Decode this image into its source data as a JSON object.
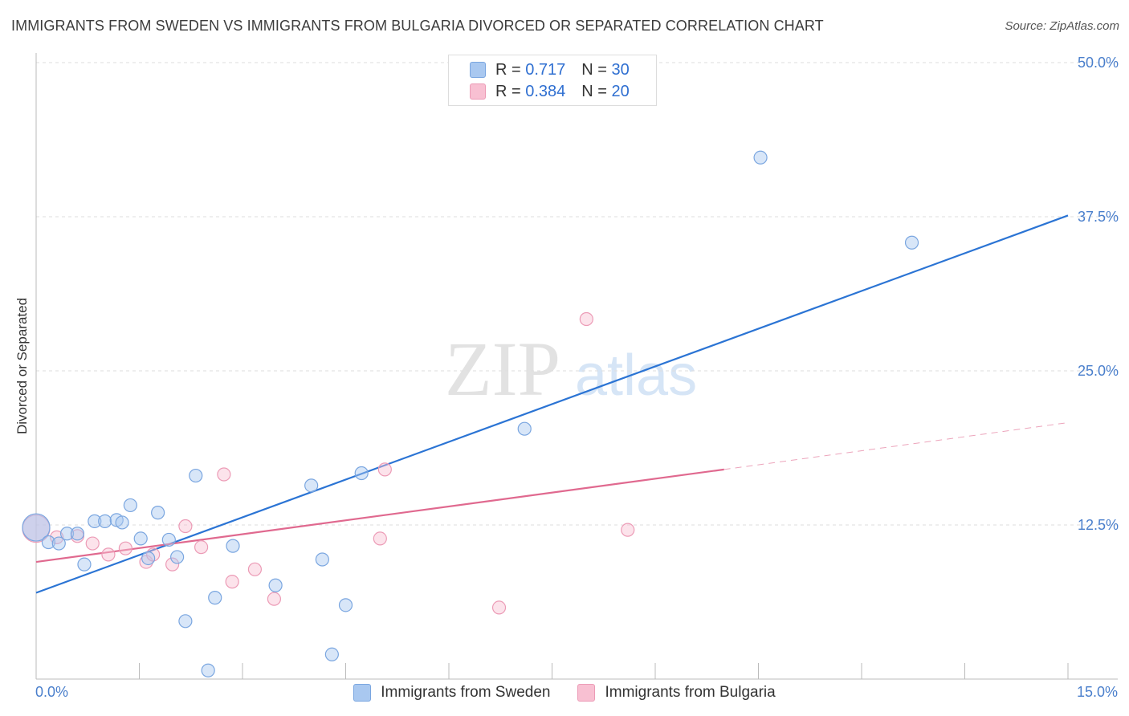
{
  "header": {
    "title": "IMMIGRANTS FROM SWEDEN VS IMMIGRANTS FROM BULGARIA DIVORCED OR SEPARATED CORRELATION CHART",
    "source": "Source: ZipAtlas.com"
  },
  "watermark": {
    "part1": "ZIP",
    "part2": "atlas"
  },
  "legend_top": {
    "rows": [
      {
        "r_label": "R =",
        "r_value": "0.717",
        "n_label": "N =",
        "n_value": "30"
      },
      {
        "r_label": "R =",
        "r_value": "0.384",
        "n_label": "N =",
        "n_value": "20"
      }
    ]
  },
  "legend_bottom": {
    "items": [
      {
        "label": "Immigrants from Sweden"
      },
      {
        "label": "Immigrants from Bulgaria"
      }
    ]
  },
  "colors": {
    "sweden_fill": "#a9c8f0",
    "sweden_stroke": "#7aa6e0",
    "sweden_line": "#2b74d4",
    "bulgaria_fill": "#f8c0d2",
    "bulgaria_stroke": "#ec9bb6",
    "bulgaria_line": "#e0698f",
    "tick_text": "#4a7fcc",
    "grid": "#dddddd"
  },
  "chart_data": {
    "type": "scatter",
    "title": "IMMIGRANTS FROM SWEDEN VS IMMIGRANTS FROM BULGARIA DIVORCED OR SEPARATED CORRELATION CHART",
    "xlabel": "",
    "ylabel": "Divorced or Separated",
    "xlim": [
      0,
      15
    ],
    "ylim": [
      0,
      50
    ],
    "x_tick_labels": [
      "0.0%",
      "15.0%"
    ],
    "y_ticks": [
      12.5,
      25.0,
      37.5,
      50.0
    ],
    "y_tick_labels": [
      "12.5%",
      "25.0%",
      "37.5%",
      "50.0%"
    ],
    "grid": true,
    "series": [
      {
        "name": "Immigrants from Sweden",
        "R": 0.717,
        "N": 30,
        "points": [
          {
            "x": 0.0,
            "y": 12.3
          },
          {
            "x": 0.18,
            "y": 11.1
          },
          {
            "x": 0.33,
            "y": 11.0
          },
          {
            "x": 0.45,
            "y": 11.8
          },
          {
            "x": 0.6,
            "y": 11.8
          },
          {
            "x": 0.7,
            "y": 9.3
          },
          {
            "x": 0.85,
            "y": 12.8
          },
          {
            "x": 1.0,
            "y": 12.8
          },
          {
            "x": 1.17,
            "y": 12.9
          },
          {
            "x": 1.25,
            "y": 12.7
          },
          {
            "x": 1.37,
            "y": 14.1
          },
          {
            "x": 1.52,
            "y": 11.4
          },
          {
            "x": 1.63,
            "y": 9.8
          },
          {
            "x": 1.77,
            "y": 13.5
          },
          {
            "x": 1.93,
            "y": 11.3
          },
          {
            "x": 2.05,
            "y": 9.9
          },
          {
            "x": 2.17,
            "y": 4.7
          },
          {
            "x": 2.32,
            "y": 16.5
          },
          {
            "x": 2.5,
            "y": 0.7
          },
          {
            "x": 2.6,
            "y": 6.6
          },
          {
            "x": 2.86,
            "y": 10.8
          },
          {
            "x": 3.48,
            "y": 7.6
          },
          {
            "x": 4.0,
            "y": 15.7
          },
          {
            "x": 4.16,
            "y": 9.7
          },
          {
            "x": 4.3,
            "y": 2.0
          },
          {
            "x": 4.5,
            "y": 6.0
          },
          {
            "x": 4.73,
            "y": 16.7
          },
          {
            "x": 7.1,
            "y": 20.3
          },
          {
            "x": 10.53,
            "y": 42.3
          },
          {
            "x": 12.73,
            "y": 35.4
          }
        ],
        "trend": {
          "x": [
            0,
            15
          ],
          "y": [
            7.0,
            37.6
          ]
        }
      },
      {
        "name": "Immigrants from Bulgaria",
        "R": 0.384,
        "N": 20,
        "points": [
          {
            "x": 0.0,
            "y": 12.2
          },
          {
            "x": 0.3,
            "y": 11.5
          },
          {
            "x": 0.6,
            "y": 11.6
          },
          {
            "x": 0.82,
            "y": 11.0
          },
          {
            "x": 1.05,
            "y": 10.1
          },
          {
            "x": 1.3,
            "y": 10.6
          },
          {
            "x": 1.6,
            "y": 9.5
          },
          {
            "x": 1.7,
            "y": 10.1
          },
          {
            "x": 1.98,
            "y": 9.3
          },
          {
            "x": 2.17,
            "y": 12.4
          },
          {
            "x": 2.4,
            "y": 10.7
          },
          {
            "x": 2.73,
            "y": 16.6
          },
          {
            "x": 2.85,
            "y": 7.9
          },
          {
            "x": 3.18,
            "y": 8.9
          },
          {
            "x": 3.46,
            "y": 6.5
          },
          {
            "x": 5.0,
            "y": 11.4
          },
          {
            "x": 5.07,
            "y": 17.0
          },
          {
            "x": 6.73,
            "y": 5.8
          },
          {
            "x": 8.0,
            "y": 29.2
          },
          {
            "x": 8.6,
            "y": 12.1
          }
        ],
        "trend": {
          "x": [
            0,
            10.0
          ],
          "y": [
            9.5,
            17.0
          ]
        },
        "trend_extension": {
          "x": [
            10.0,
            15
          ],
          "y": [
            17.0,
            20.8
          ]
        }
      }
    ]
  }
}
